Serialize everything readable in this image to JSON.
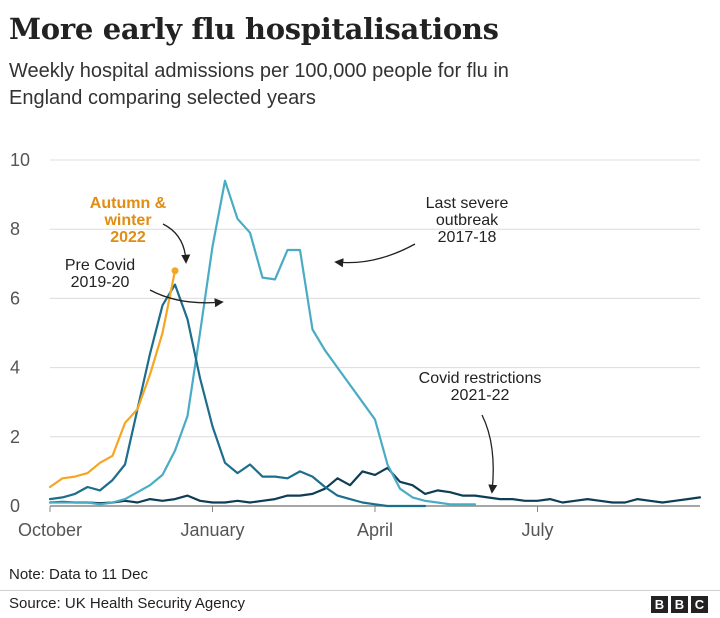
{
  "header": {
    "title": "More early flu hospitalisations",
    "subtitle": "Weekly hospital admissions per 100,000 people for flu in England comparing selected years"
  },
  "footer": {
    "note": "Note: Data to 11 Dec",
    "source": "Source: UK Health Security Agency",
    "logo_letters": [
      "B",
      "B",
      "C"
    ]
  },
  "chart_data": {
    "type": "line",
    "ylim": [
      0,
      10
    ],
    "y_ticks": [
      0,
      2,
      4,
      6,
      8,
      10
    ],
    "xlim": [
      0,
      52
    ],
    "x_ticks": [
      {
        "label": "October",
        "x": 0
      },
      {
        "label": "January",
        "x": 13
      },
      {
        "label": "April",
        "x": 26
      },
      {
        "label": "July",
        "x": 39
      }
    ],
    "grid": "horizontal",
    "annotations": [
      {
        "lines": [
          "Autumn &",
          "winter",
          "2022"
        ],
        "style": "orange"
      },
      {
        "lines": [
          "Pre Covid",
          "2019-20"
        ],
        "style": "normal"
      },
      {
        "lines": [
          "Last severe",
          "outbreak",
          "2017-18"
        ],
        "style": "normal"
      },
      {
        "lines": [
          "Covid restrictions",
          "2021-22"
        ],
        "style": "normal"
      }
    ],
    "series": [
      {
        "name": "Autumn & winter 2022",
        "color": "#f5a623",
        "x": [
          0,
          1,
          2,
          3,
          4,
          5,
          6,
          7,
          8,
          9,
          10
        ],
        "values": [
          0.55,
          0.8,
          0.85,
          0.95,
          1.25,
          1.45,
          2.4,
          2.8,
          3.8,
          5.0,
          6.8
        ]
      },
      {
        "name": "Pre Covid 2019-20",
        "color": "#1d6d8c",
        "x": [
          0,
          1,
          2,
          3,
          4,
          5,
          6,
          7,
          8,
          9,
          10,
          11,
          12,
          13,
          14,
          15,
          16,
          17,
          18,
          19,
          20,
          21,
          22,
          23,
          24,
          25,
          26,
          27,
          28,
          29,
          30
        ],
        "values": [
          0.2,
          0.25,
          0.35,
          0.55,
          0.45,
          0.75,
          1.2,
          2.8,
          4.4,
          5.8,
          6.4,
          5.4,
          3.7,
          2.3,
          1.25,
          0.95,
          1.2,
          0.85,
          0.85,
          0.8,
          1.0,
          0.85,
          0.55,
          0.3,
          0.2,
          0.1,
          0.05,
          0.0,
          0.0,
          0.0,
          0.0
        ]
      },
      {
        "name": "Last severe outbreak 2017-18",
        "color": "#4aabc4",
        "x": [
          0,
          1,
          2,
          3,
          4,
          5,
          6,
          7,
          8,
          9,
          10,
          11,
          12,
          13,
          14,
          15,
          16,
          17,
          18,
          19,
          20,
          21,
          22,
          23,
          24,
          25,
          26,
          27,
          28,
          29,
          30,
          31,
          32,
          33,
          34
        ],
        "values": [
          0.1,
          0.1,
          0.1,
          0.1,
          0.05,
          0.1,
          0.2,
          0.4,
          0.6,
          0.9,
          1.6,
          2.6,
          5.0,
          7.5,
          9.4,
          8.3,
          7.9,
          6.6,
          6.55,
          7.4,
          7.4,
          5.1,
          4.5,
          4.0,
          3.5,
          3.0,
          2.5,
          1.2,
          0.5,
          0.25,
          0.15,
          0.1,
          0.05,
          0.05,
          0.05
        ]
      },
      {
        "name": "Covid restrictions 2021-22",
        "color": "#0f3d55",
        "x": [
          0,
          1,
          2,
          3,
          4,
          5,
          6,
          7,
          8,
          9,
          10,
          11,
          12,
          13,
          14,
          15,
          16,
          17,
          18,
          19,
          20,
          21,
          22,
          23,
          24,
          25,
          26,
          27,
          28,
          29,
          30,
          31,
          32,
          33,
          34,
          35,
          36,
          37,
          38,
          39,
          40,
          41,
          42,
          43,
          44,
          45,
          46,
          47,
          48,
          49,
          50,
          51,
          52
        ],
        "values": [
          0.1,
          0.12,
          0.1,
          0.1,
          0.08,
          0.1,
          0.15,
          0.1,
          0.2,
          0.15,
          0.2,
          0.3,
          0.15,
          0.1,
          0.1,
          0.15,
          0.1,
          0.15,
          0.2,
          0.3,
          0.3,
          0.35,
          0.5,
          0.8,
          0.6,
          1.0,
          0.9,
          1.1,
          0.7,
          0.6,
          0.35,
          0.45,
          0.4,
          0.3,
          0.3,
          0.25,
          0.2,
          0.2,
          0.15,
          0.15,
          0.2,
          0.1,
          0.15,
          0.2,
          0.15,
          0.1,
          0.1,
          0.2,
          0.15,
          0.1,
          0.15,
          0.2,
          0.25
        ]
      }
    ]
  }
}
